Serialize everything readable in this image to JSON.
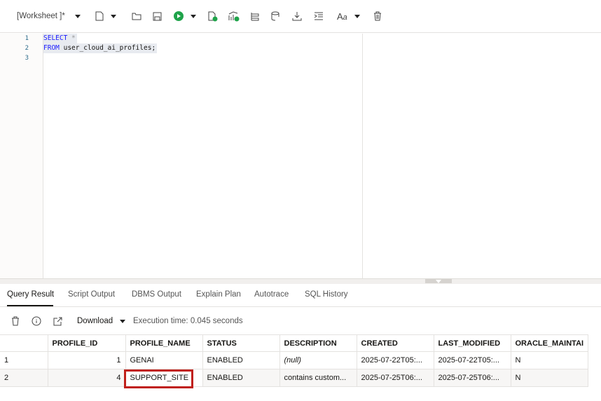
{
  "toolbar": {
    "worksheet_label": "[Worksheet ]*",
    "icons": [
      "new-file-icon",
      "open-folder-icon",
      "save-icon",
      "run-icon",
      "run-script-icon",
      "explain-plan-icon",
      "autotrace-icon",
      "sql-history-icon",
      "download-icon",
      "format-icon",
      "font-case-icon",
      "trash-icon"
    ],
    "run_color": "#1fa34a"
  },
  "editor": {
    "lines": [
      {
        "n": "1",
        "kw": "SELECT",
        "rest": " * "
      },
      {
        "n": "2",
        "kw": "FROM",
        "rest": " user_cloud_ai_profiles;"
      },
      {
        "n": "3",
        "kw": "",
        "rest": ""
      }
    ]
  },
  "tabs": [
    "Query Result",
    "Script Output",
    "DBMS Output",
    "Explain Plan",
    "Autotrace",
    "SQL History"
  ],
  "results_toolbar": {
    "download": "Download",
    "exec_time": "Execution time: 0.045 seconds"
  },
  "table": {
    "columns": [
      "",
      "PROFILE_ID",
      "PROFILE_NAME",
      "STATUS",
      "DESCRIPTION",
      "CREATED",
      "LAST_MODIFIED",
      "ORACLE_MAINTAI"
    ],
    "rows": [
      [
        "1",
        "1",
        "GENAI",
        "ENABLED",
        "(null)",
        "2025-07-22T05:...",
        "2025-07-22T05:...",
        "N"
      ],
      [
        "2",
        "4",
        "SUPPORT_SITE",
        "ENABLED",
        "contains custom...",
        "2025-07-25T06:...",
        "2025-07-25T06:...",
        "N"
      ]
    ]
  },
  "highlight_color": "#c0201a"
}
